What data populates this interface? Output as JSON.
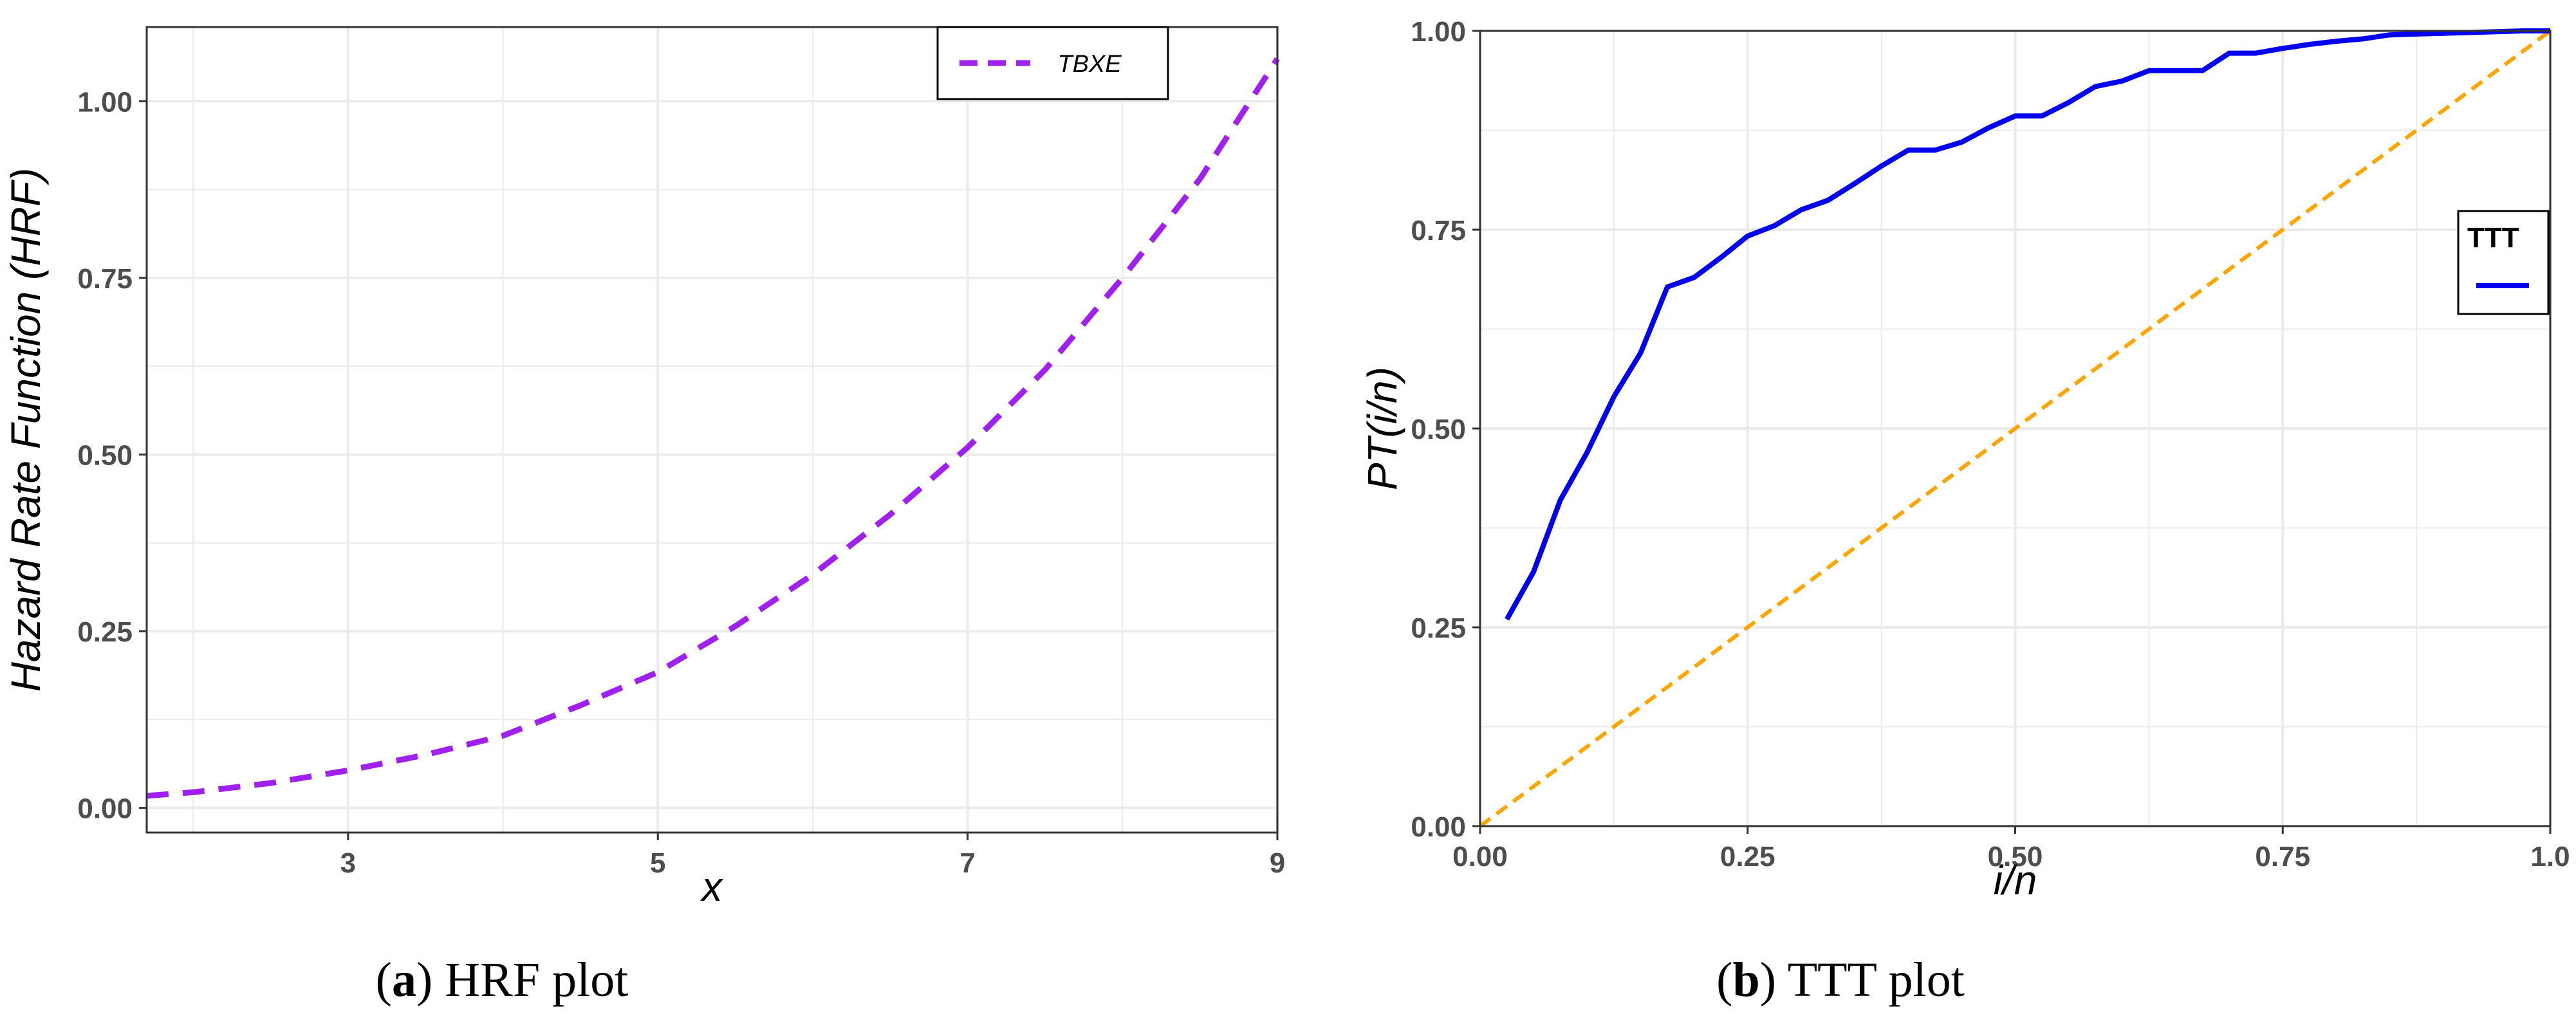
{
  "captions": {
    "a": {
      "open": "(",
      "letter": "a",
      "close": ") ",
      "text": "HRF plot"
    },
    "b": {
      "open": "(",
      "letter": "b",
      "close": ") ",
      "text": "TTT plot"
    }
  },
  "colors": {
    "hrf_line": "#A020F0",
    "ttt_line": "#0000EE",
    "diagonal": "#FFA500",
    "grid": "#EBEBEB",
    "panel_border": "#333333"
  },
  "chart_data": [
    {
      "id": "hrf",
      "type": "line",
      "title": "",
      "xlabel": "x",
      "ylabel": "Hazard Rate Function (HRF)",
      "xlim": [
        1.7,
        9.0
      ],
      "ylim": [
        -0.035,
        1.105
      ],
      "x_ticks": [
        3,
        5,
        7,
        9
      ],
      "x_tick_labels": [
        "3",
        "5",
        "7",
        "9"
      ],
      "y_ticks": [
        0.0,
        0.25,
        0.5,
        0.75,
        1.0
      ],
      "y_tick_labels": [
        "0.00",
        "0.25",
        "0.50",
        "0.75",
        "1.00"
      ],
      "grid": true,
      "legend": {
        "position": "top-right",
        "entries": [
          "TBXE"
        ]
      },
      "series": [
        {
          "name": "TBXE",
          "style": "dashed",
          "x": [
            1.7,
            2.0,
            2.5,
            3.0,
            3.5,
            4.0,
            4.5,
            5.0,
            5.5,
            6.0,
            6.5,
            7.0,
            7.5,
            8.0,
            8.5,
            9.0
          ],
          "y": [
            0.017,
            0.022,
            0.035,
            0.053,
            0.075,
            0.102,
            0.145,
            0.192,
            0.257,
            0.33,
            0.415,
            0.51,
            0.62,
            0.75,
            0.89,
            1.06
          ]
        }
      ]
    },
    {
      "id": "ttt",
      "type": "line",
      "title": "",
      "xlabel": "i/n",
      "ylabel": "PT(i/n)",
      "xlim": [
        0.0,
        1.0
      ],
      "ylim": [
        0.0,
        1.0
      ],
      "x_ticks": [
        0.0,
        0.25,
        0.5,
        0.75,
        1.0
      ],
      "x_tick_labels": [
        "0.00",
        "0.25",
        "0.50",
        "0.75",
        "1.0"
      ],
      "y_ticks": [
        0.0,
        0.25,
        0.5,
        0.75,
        1.0
      ],
      "y_tick_labels": [
        "0.00",
        "0.25",
        "0.50",
        "0.75",
        "1.00"
      ],
      "grid": true,
      "legend": {
        "position": "right",
        "title": "TTT"
      },
      "series": [
        {
          "name": "",
          "style": "solid",
          "x": [
            0.025,
            0.05,
            0.075,
            0.1,
            0.125,
            0.15,
            0.175,
            0.2,
            0.225,
            0.25,
            0.275,
            0.3,
            0.325,
            0.35,
            0.375,
            0.4,
            0.425,
            0.45,
            0.475,
            0.5,
            0.525,
            0.55,
            0.575,
            0.6,
            0.625,
            0.65,
            0.675,
            0.7,
            0.725,
            0.75,
            0.775,
            0.8,
            0.825,
            0.85,
            0.875,
            0.9,
            0.925,
            0.95,
            0.975,
            1.0
          ],
          "y": [
            0.26,
            0.32,
            0.41,
            0.47,
            0.54,
            0.595,
            0.678,
            0.69,
            0.715,
            0.742,
            0.755,
            0.775,
            0.787,
            0.808,
            0.83,
            0.85,
            0.85,
            0.86,
            0.878,
            0.893,
            0.893,
            0.91,
            0.93,
            0.937,
            0.95,
            0.95,
            0.95,
            0.972,
            0.972,
            0.978,
            0.983,
            0.987,
            0.99,
            0.995,
            0.996,
            0.997,
            0.998,
            0.999,
            1.0,
            1.0
          ]
        },
        {
          "name": "",
          "style": "dashed",
          "x": [
            0.0,
            1.0
          ],
          "y": [
            0.0,
            1.0
          ]
        }
      ]
    }
  ]
}
